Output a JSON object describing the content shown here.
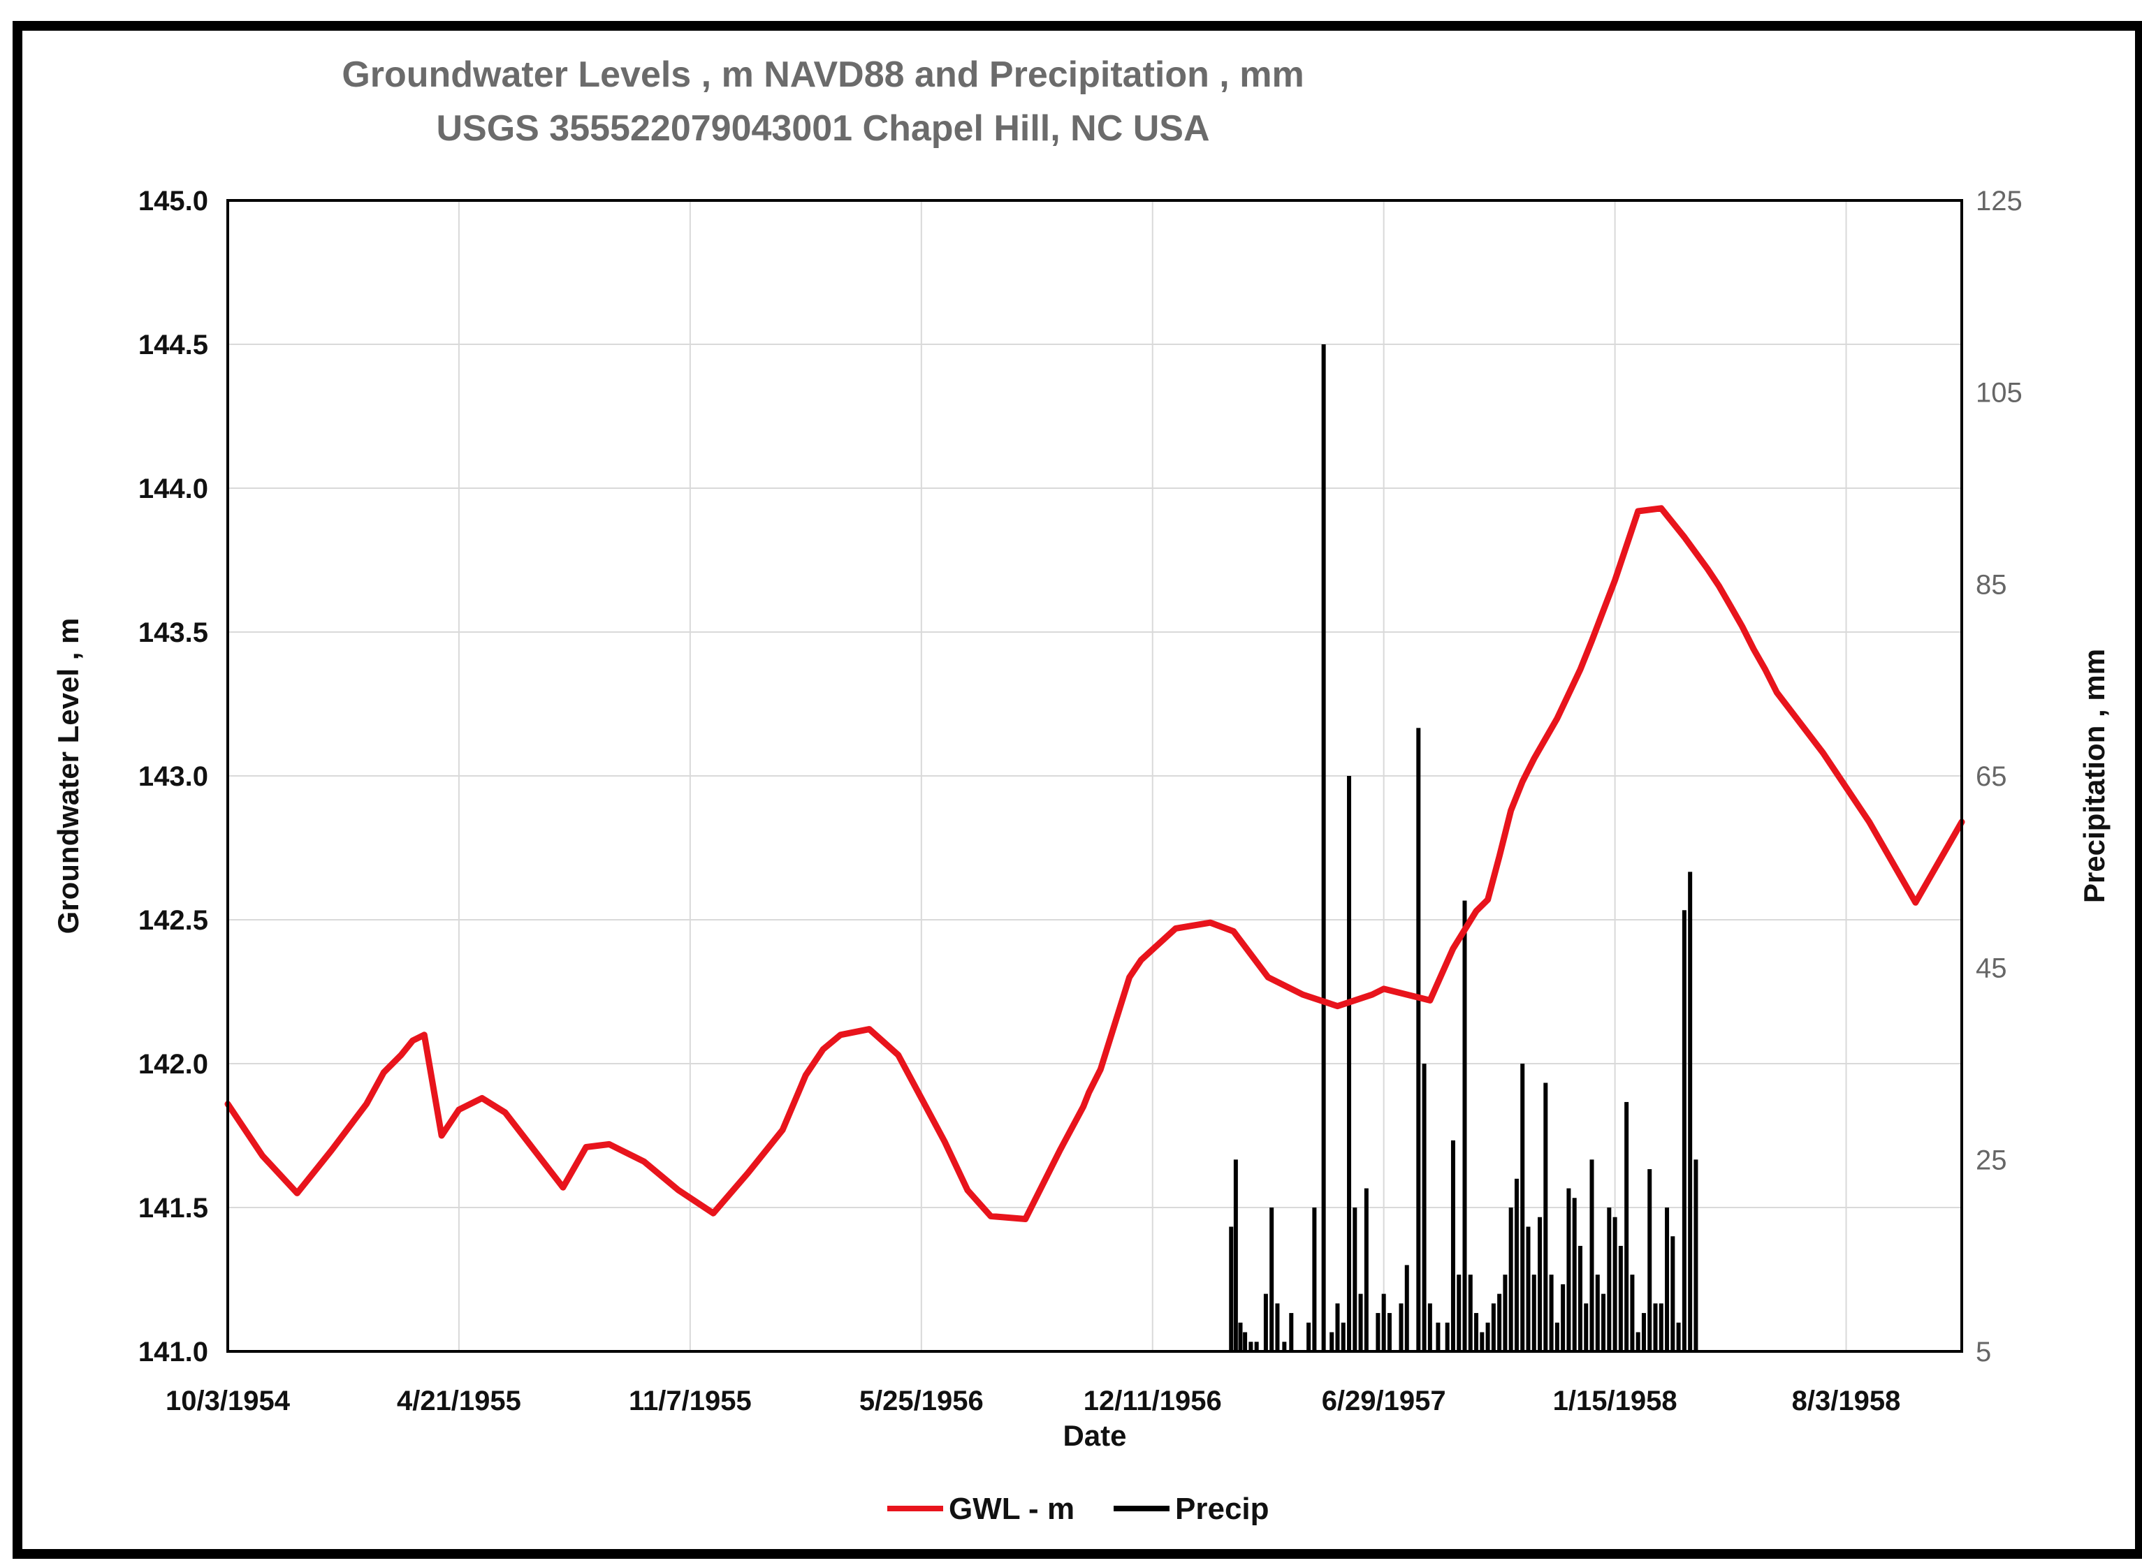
{
  "chart_data": {
    "type": "line",
    "title": "Groundwater Levels , m NAVD88 and Precipitation , mm",
    "subtitle": "USGS 355522079043001 Chapel Hill, NC USA",
    "xlabel": "Date",
    "ylabel": "Groundwater Level , m",
    "y2label": "Precipitation , mm",
    "x_tick_labels": [
      "10/3/1954",
      "4/21/1955",
      "11/7/1955",
      "5/25/1956",
      "12/11/1956",
      "6/29/1957",
      "1/15/1958",
      "8/3/1958"
    ],
    "x_tick_days": [
      0,
      200,
      400,
      600,
      800,
      1000,
      1200,
      1400
    ],
    "xlim_days": [
      0,
      1500
    ],
    "ylim": [
      141.0,
      145.0
    ],
    "y_ticks": [
      "141.0",
      "141.5",
      "142.0",
      "142.5",
      "143.0",
      "143.5",
      "144.0",
      "144.5",
      "145.0"
    ],
    "y2lim": [
      5,
      125
    ],
    "y2_ticks": [
      "5",
      "25",
      "45",
      "65",
      "85",
      "105",
      "125"
    ],
    "grid": true,
    "legend_position": "bottom-center",
    "series": [
      {
        "name": "GWL - m",
        "type": "line",
        "color": "#e8141c",
        "x_days": [
          0,
          30,
          60,
          90,
          120,
          135,
          150,
          160,
          170,
          185,
          200,
          220,
          240,
          265,
          290,
          310,
          330,
          360,
          390,
          420,
          450,
          480,
          500,
          515,
          530,
          555,
          580,
          600,
          620,
          640,
          660,
          690,
          720,
          740,
          745,
          755,
          780,
          790,
          820,
          850,
          870,
          900,
          930,
          960,
          990,
          1000,
          1020,
          1040,
          1060,
          1080,
          1090,
          1100,
          1110,
          1120,
          1130,
          1150,
          1170,
          1180,
          1200,
          1220,
          1240,
          1260,
          1280,
          1290,
          1300,
          1310,
          1320,
          1330,
          1340,
          1380,
          1420,
          1460,
          1500
        ],
        "values": [
          141.86,
          141.68,
          141.55,
          141.7,
          141.86,
          141.97,
          142.03,
          142.08,
          142.1,
          141.75,
          141.84,
          141.88,
          141.83,
          141.7,
          141.57,
          141.71,
          141.72,
          141.66,
          141.56,
          141.48,
          141.62,
          141.77,
          141.96,
          142.05,
          142.1,
          142.12,
          142.03,
          141.88,
          141.73,
          141.56,
          141.47,
          141.46,
          141.7,
          141.85,
          141.9,
          141.98,
          142.3,
          142.36,
          142.47,
          142.49,
          142.46,
          142.3,
          142.24,
          142.2,
          142.24,
          142.26,
          142.24,
          142.22,
          142.4,
          142.53,
          142.57,
          142.72,
          142.88,
          142.98,
          143.06,
          143.2,
          143.37,
          143.47,
          143.68,
          143.92,
          143.93,
          143.83,
          143.72,
          143.66,
          143.59,
          143.52,
          143.44,
          143.37,
          143.29,
          143.08,
          142.84,
          142.56,
          142.84
        ]
      },
      {
        "name": "Precip",
        "type": "bar",
        "color": "#000000",
        "axis": "right",
        "x_days": [
          868,
          872,
          876,
          880,
          885,
          890,
          898,
          903,
          908,
          914,
          920,
          935,
          940,
          948,
          955,
          960,
          965,
          970,
          975,
          980,
          985,
          995,
          1000,
          1005,
          1015,
          1020,
          1030,
          1035,
          1040,
          1047,
          1055,
          1060,
          1065,
          1070,
          1075,
          1080,
          1085,
          1090,
          1095,
          1100,
          1105,
          1110,
          1115,
          1120,
          1125,
          1130,
          1135,
          1140,
          1145,
          1150,
          1155,
          1160,
          1165,
          1170,
          1175,
          1180,
          1185,
          1190,
          1195,
          1200,
          1205,
          1210,
          1215,
          1220,
          1225,
          1230,
          1235,
          1240,
          1245,
          1250,
          1255,
          1260,
          1265,
          1270
        ],
        "values": [
          18,
          25,
          8,
          7,
          6,
          6,
          11,
          20,
          10,
          6,
          9,
          8,
          20,
          110,
          7,
          10,
          8,
          65,
          20,
          11,
          22,
          9,
          11,
          9,
          10,
          14,
          70,
          35,
          10,
          8,
          8,
          27,
          13,
          52,
          13,
          9,
          7,
          8,
          10,
          11,
          13,
          20,
          23,
          35,
          18,
          13,
          19,
          33,
          13,
          8,
          12,
          22,
          21,
          16,
          10,
          25,
          13,
          11,
          20,
          19,
          16,
          31,
          13,
          7,
          9,
          24,
          10,
          10,
          20,
          17,
          8,
          51,
          55,
          25
        ]
      }
    ]
  },
  "legend": {
    "gwl_label": "GWL - m",
    "precip_label": "Precip"
  }
}
